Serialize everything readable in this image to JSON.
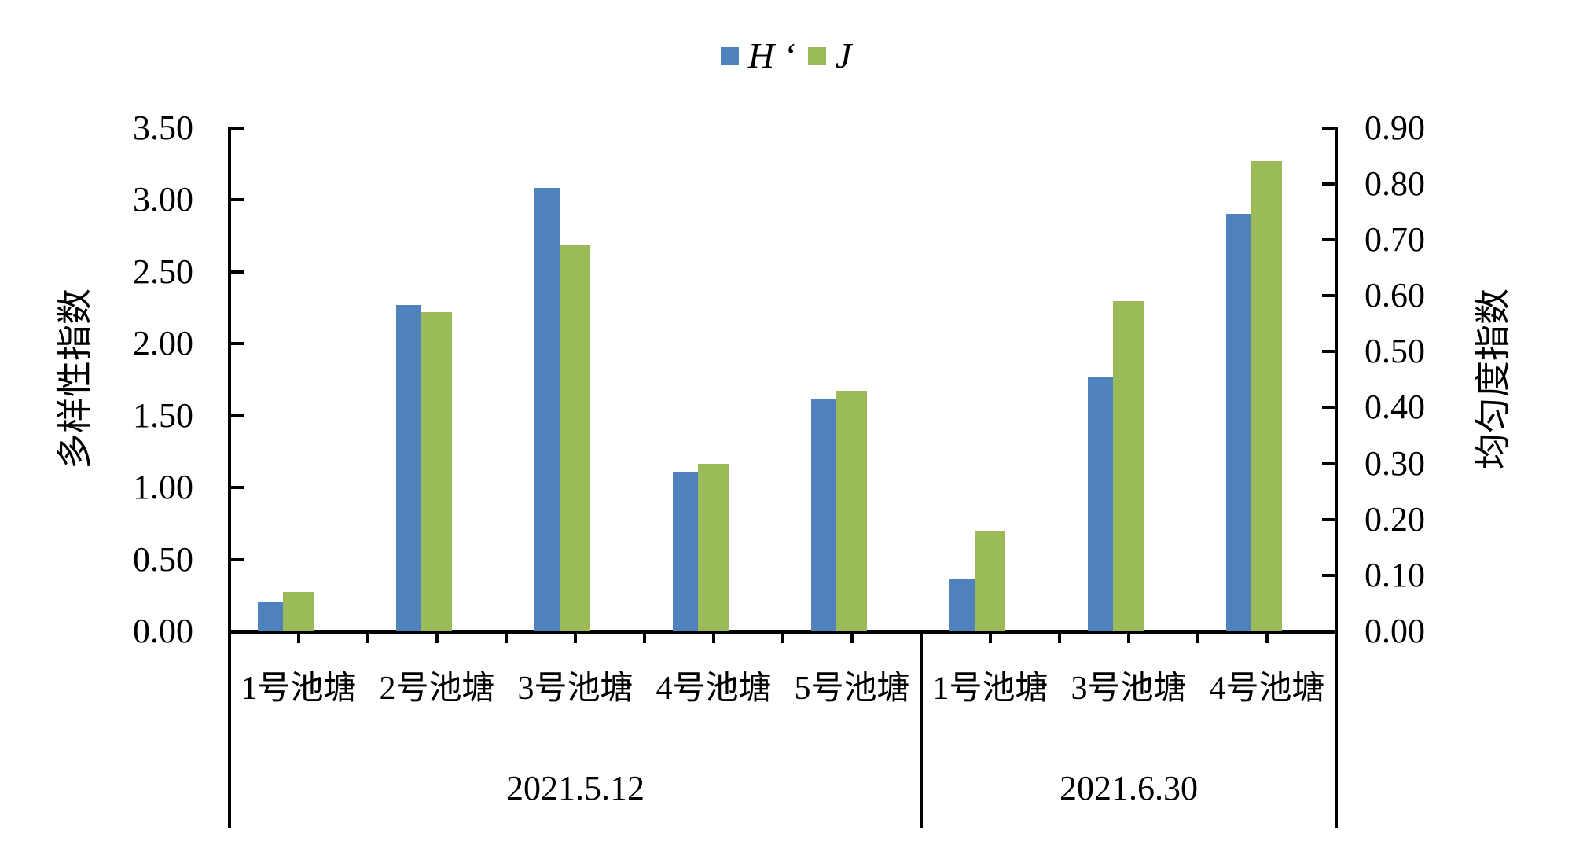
{
  "page": {
    "background": "#ffffff"
  },
  "chart_data": {
    "type": "bar",
    "title": "",
    "legend_position": "top-center",
    "grid": false,
    "legend": [
      {
        "label": "H ‘",
        "series": "H",
        "color": "#4f81bd",
        "axis": "left"
      },
      {
        "label": "J",
        "series": "J",
        "color": "#9bbb59",
        "axis": "right"
      }
    ],
    "left_axis": {
      "title": "多样性指数",
      "min": 0.0,
      "max": 3.5,
      "step": 0.5,
      "decimals": 2
    },
    "right_axis": {
      "title": "均匀度指数",
      "min": 0.0,
      "max": 0.9,
      "step": 0.1,
      "decimals": 2
    },
    "groups": [
      {
        "date": "2021.5.12",
        "categories": [
          "1号池塘",
          "2号池塘",
          "3号池塘",
          "4号池塘",
          "5号池塘"
        ],
        "series": [
          {
            "name": "H ‘",
            "values": [
              0.2,
              2.27,
              3.08,
              1.11,
              1.61
            ]
          },
          {
            "name": "J",
            "values": [
              0.07,
              0.57,
              0.69,
              0.3,
              0.43
            ]
          }
        ]
      },
      {
        "date": "2021.6.30",
        "categories": [
          "1号池塘",
          "3号池塘",
          "4号池塘"
        ],
        "series": [
          {
            "name": "H ‘",
            "values": [
              0.36,
              1.77,
              2.9
            ]
          },
          {
            "name": "J",
            "values": [
              0.18,
              0.59,
              0.84
            ]
          }
        ]
      }
    ]
  }
}
